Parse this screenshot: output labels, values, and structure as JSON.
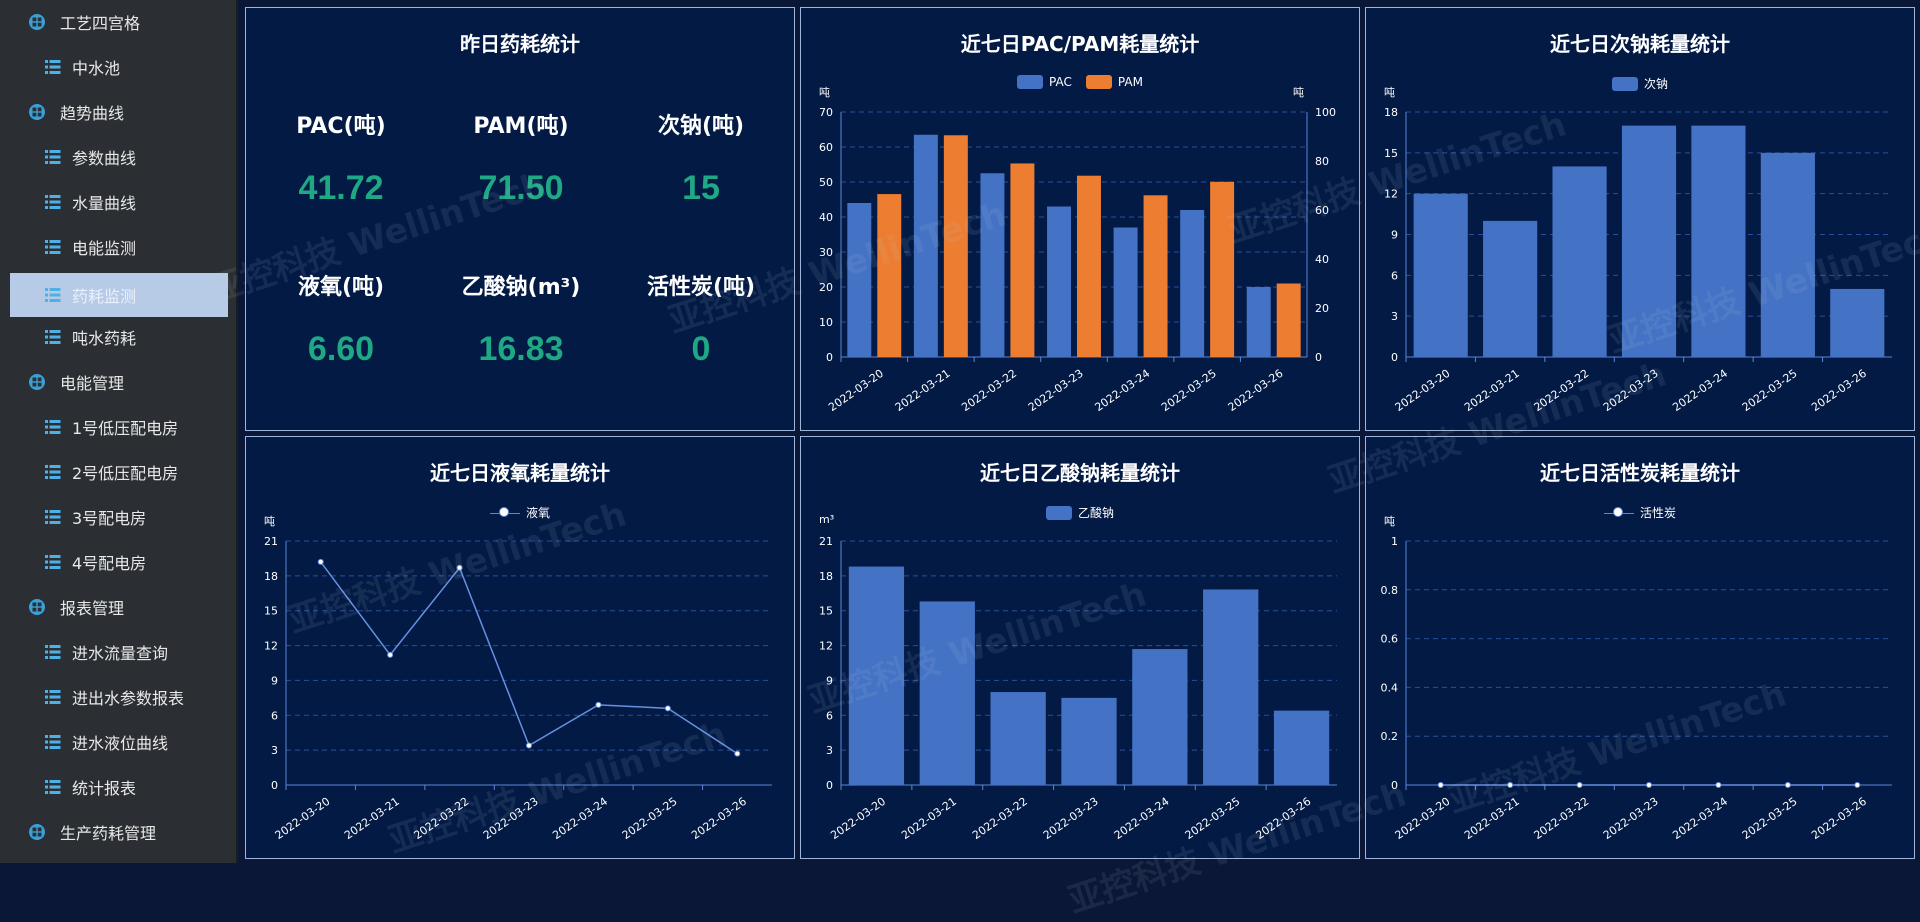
{
  "sidebar": {
    "items": [
      {
        "label": "工艺四宫格",
        "type": "group"
      },
      {
        "label": "中水池",
        "type": "child"
      },
      {
        "label": "趋势曲线",
        "type": "group"
      },
      {
        "label": "参数曲线",
        "type": "child"
      },
      {
        "label": "水量曲线",
        "type": "child"
      },
      {
        "label": "电能监测",
        "type": "child"
      },
      {
        "label": "药耗监测",
        "type": "child",
        "active": true
      },
      {
        "label": "吨水药耗",
        "type": "child"
      },
      {
        "label": "电能管理",
        "type": "group"
      },
      {
        "label": "1号低压配电房",
        "type": "child"
      },
      {
        "label": "2号低压配电房",
        "type": "child"
      },
      {
        "label": "3号配电房",
        "type": "child"
      },
      {
        "label": "4号配电房",
        "type": "child"
      },
      {
        "label": "报表管理",
        "type": "group"
      },
      {
        "label": "进水流量查询",
        "type": "child"
      },
      {
        "label": "进出水参数报表",
        "type": "child"
      },
      {
        "label": "进水液位曲线",
        "type": "child"
      },
      {
        "label": "统计报表",
        "type": "child"
      },
      {
        "label": "生产药耗管理",
        "type": "group"
      }
    ]
  },
  "stats": {
    "title": "昨日药耗统计",
    "items": [
      {
        "label": "PAC(吨)",
        "value": "41.72"
      },
      {
        "label": "PAM(吨)",
        "value": "71.50"
      },
      {
        "label": "次钠(吨)",
        "value": "15"
      },
      {
        "label": "液氧(吨)",
        "value": "6.60"
      },
      {
        "label": "乙酸钠(m³)",
        "value": "16.83"
      },
      {
        "label": "活性炭(吨)",
        "value": "0"
      }
    ]
  },
  "watermark": "亚控科技 WellinTech",
  "colors": {
    "bar": "#4472c4",
    "bar2": "#ed7d31",
    "value": "#1ea984",
    "panel": "#031a45"
  },
  "chart_data": [
    {
      "id": "pac-pam",
      "type": "bar",
      "title": "近七日PAC/PAM耗量统计",
      "categories": [
        "2022-03-20",
        "2022-03-21",
        "2022-03-22",
        "2022-03-23",
        "2022-03-24",
        "2022-03-25",
        "2022-03-26"
      ],
      "series": [
        {
          "name": "PAC",
          "axis": "left",
          "values": [
            44,
            63.5,
            52.5,
            43,
            37,
            42,
            20
          ]
        },
        {
          "name": "PAM",
          "axis": "right",
          "values": [
            66.5,
            90.5,
            79,
            74,
            66,
            71.5,
            30
          ]
        }
      ],
      "ylabel": "吨",
      "ylabel_right": "吨",
      "ylim": [
        0,
        70
      ],
      "ylim_right": [
        0,
        100
      ],
      "yticks": [
        0,
        10,
        20,
        30,
        40,
        50,
        60,
        70
      ],
      "yticks_right": [
        0,
        20,
        40,
        60,
        80,
        100
      ]
    },
    {
      "id": "naclo",
      "type": "bar",
      "title": "近七日次钠耗量统计",
      "categories": [
        "2022-03-20",
        "2022-03-21",
        "2022-03-22",
        "2022-03-23",
        "2022-03-24",
        "2022-03-25",
        "2022-03-26"
      ],
      "series": [
        {
          "name": "次钠",
          "values": [
            12,
            10,
            14,
            17,
            17,
            15,
            5
          ]
        }
      ],
      "ylabel": "吨",
      "ylim": [
        0,
        18
      ],
      "yticks": [
        0,
        3,
        6,
        9,
        12,
        15,
        18
      ]
    },
    {
      "id": "lox",
      "type": "line",
      "title": "近七日液氧耗量统计",
      "categories": [
        "2022-03-20",
        "2022-03-21",
        "2022-03-22",
        "2022-03-23",
        "2022-03-24",
        "2022-03-25",
        "2022-03-26"
      ],
      "series": [
        {
          "name": "液氧",
          "values": [
            19.2,
            11.2,
            18.7,
            3.4,
            6.9,
            6.6,
            2.7
          ]
        }
      ],
      "ylabel": "吨",
      "ylim": [
        0,
        21
      ],
      "yticks": [
        0,
        3,
        6,
        9,
        12,
        15,
        18,
        21
      ]
    },
    {
      "id": "naac",
      "type": "bar",
      "title": "近七日乙酸钠耗量统计",
      "categories": [
        "2022-03-20",
        "2022-03-21",
        "2022-03-22",
        "2022-03-23",
        "2022-03-24",
        "2022-03-25",
        "2022-03-26"
      ],
      "series": [
        {
          "name": "乙酸钠",
          "values": [
            18.8,
            15.8,
            8,
            7.5,
            11.7,
            16.83,
            6.4
          ]
        }
      ],
      "ylabel": "m³",
      "ylim": [
        0,
        21
      ],
      "yticks": [
        0,
        3,
        6,
        9,
        12,
        15,
        18,
        21
      ]
    },
    {
      "id": "carbon",
      "type": "line",
      "title": "近七日活性炭耗量统计",
      "categories": [
        "2022-03-20",
        "2022-03-21",
        "2022-03-22",
        "2022-03-23",
        "2022-03-24",
        "2022-03-25",
        "2022-03-26"
      ],
      "series": [
        {
          "name": "活性炭",
          "values": [
            0,
            0,
            0,
            0,
            0,
            0,
            0
          ]
        }
      ],
      "ylabel": "吨",
      "ylim": [
        0,
        1
      ],
      "yticks": [
        0,
        0.2,
        0.4,
        0.6,
        0.8,
        1
      ]
    }
  ]
}
